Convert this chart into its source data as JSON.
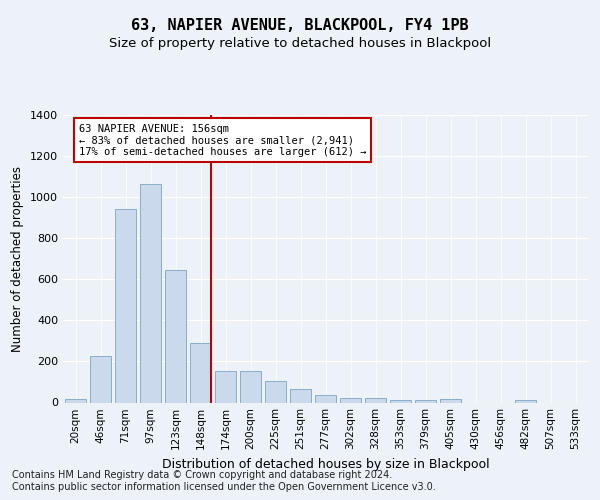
{
  "title": "63, NAPIER AVENUE, BLACKPOOL, FY4 1PB",
  "subtitle": "Size of property relative to detached houses in Blackpool",
  "xlabel": "Distribution of detached houses by size in Blackpool",
  "ylabel": "Number of detached properties",
  "categories": [
    "20sqm",
    "46sqm",
    "71sqm",
    "97sqm",
    "123sqm",
    "148sqm",
    "174sqm",
    "200sqm",
    "225sqm",
    "251sqm",
    "277sqm",
    "302sqm",
    "328sqm",
    "353sqm",
    "379sqm",
    "405sqm",
    "430sqm",
    "456sqm",
    "482sqm",
    "507sqm",
    "533sqm"
  ],
  "values": [
    15,
    225,
    940,
    1065,
    645,
    290,
    155,
    155,
    105,
    65,
    35,
    20,
    20,
    10,
    10,
    15,
    0,
    0,
    10,
    0,
    0
  ],
  "bar_color": "#cad9ec",
  "bar_edge_color": "#8aaec8",
  "vline_x": 5.43,
  "vline_color": "#bb0000",
  "annotation_line1": "63 NAPIER AVENUE: 156sqm",
  "annotation_line2": "← 83% of detached houses are smaller (2,941)",
  "annotation_line3": "17% of semi-detached houses are larger (612) →",
  "annotation_box_color": "#ffffff",
  "annotation_box_edge_color": "#bb0000",
  "ylim": [
    0,
    1400
  ],
  "yticks": [
    0,
    200,
    400,
    600,
    800,
    1000,
    1200,
    1400
  ],
  "bg_color": "#edf2f8",
  "footer1": "Contains HM Land Registry data © Crown copyright and database right 2024.",
  "footer2": "Contains public sector information licensed under the Open Government Licence v3.0.",
  "title_fontsize": 11,
  "subtitle_fontsize": 9.5,
  "xlabel_fontsize": 9,
  "ylabel_fontsize": 8.5,
  "tick_fontsize": 8,
  "footer_fontsize": 7
}
